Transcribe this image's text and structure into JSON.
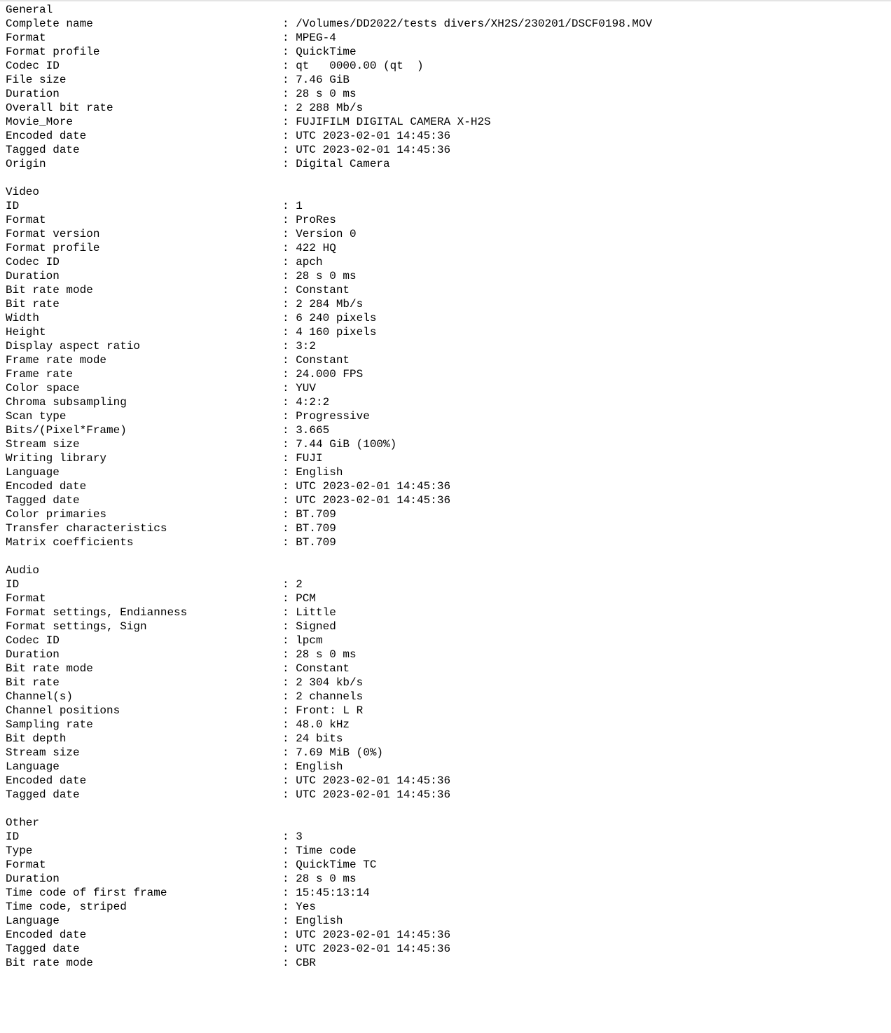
{
  "sections": [
    {
      "title": "General",
      "fields": [
        {
          "label": "Complete name",
          "value": "/Volumes/DD2022/tests divers/XH2S/230201/DSCF0198.MOV"
        },
        {
          "label": "Format",
          "value": "MPEG-4"
        },
        {
          "label": "Format profile",
          "value": "QuickTime"
        },
        {
          "label": "Codec ID",
          "value": "qt   0000.00 (qt  )"
        },
        {
          "label": "File size",
          "value": "7.46 GiB"
        },
        {
          "label": "Duration",
          "value": "28 s 0 ms"
        },
        {
          "label": "Overall bit rate",
          "value": "2 288 Mb/s"
        },
        {
          "label": "Movie_More",
          "value": "FUJIFILM DIGITAL CAMERA X-H2S"
        },
        {
          "label": "Encoded date",
          "value": "UTC 2023-02-01 14:45:36"
        },
        {
          "label": "Tagged date",
          "value": "UTC 2023-02-01 14:45:36"
        },
        {
          "label": "Origin",
          "value": "Digital Camera"
        }
      ]
    },
    {
      "title": "Video",
      "fields": [
        {
          "label": "ID",
          "value": "1"
        },
        {
          "label": "Format",
          "value": "ProRes"
        },
        {
          "label": "Format version",
          "value": "Version 0"
        },
        {
          "label": "Format profile",
          "value": "422 HQ"
        },
        {
          "label": "Codec ID",
          "value": "apch"
        },
        {
          "label": "Duration",
          "value": "28 s 0 ms"
        },
        {
          "label": "Bit rate mode",
          "value": "Constant"
        },
        {
          "label": "Bit rate",
          "value": "2 284 Mb/s"
        },
        {
          "label": "Width",
          "value": "6 240 pixels"
        },
        {
          "label": "Height",
          "value": "4 160 pixels"
        },
        {
          "label": "Display aspect ratio",
          "value": "3:2"
        },
        {
          "label": "Frame rate mode",
          "value": "Constant"
        },
        {
          "label": "Frame rate",
          "value": "24.000 FPS"
        },
        {
          "label": "Color space",
          "value": "YUV"
        },
        {
          "label": "Chroma subsampling",
          "value": "4:2:2"
        },
        {
          "label": "Scan type",
          "value": "Progressive"
        },
        {
          "label": "Bits/(Pixel*Frame)",
          "value": "3.665"
        },
        {
          "label": "Stream size",
          "value": "7.44 GiB (100%)"
        },
        {
          "label": "Writing library",
          "value": "FUJI"
        },
        {
          "label": "Language",
          "value": "English"
        },
        {
          "label": "Encoded date",
          "value": "UTC 2023-02-01 14:45:36"
        },
        {
          "label": "Tagged date",
          "value": "UTC 2023-02-01 14:45:36"
        },
        {
          "label": "Color primaries",
          "value": "BT.709"
        },
        {
          "label": "Transfer characteristics",
          "value": "BT.709"
        },
        {
          "label": "Matrix coefficients",
          "value": "BT.709"
        }
      ]
    },
    {
      "title": "Audio",
      "fields": [
        {
          "label": "ID",
          "value": "2"
        },
        {
          "label": "Format",
          "value": "PCM"
        },
        {
          "label": "Format settings, Endianness",
          "value": "Little"
        },
        {
          "label": "Format settings, Sign",
          "value": "Signed"
        },
        {
          "label": "Codec ID",
          "value": "lpcm"
        },
        {
          "label": "Duration",
          "value": "28 s 0 ms"
        },
        {
          "label": "Bit rate mode",
          "value": "Constant"
        },
        {
          "label": "Bit rate",
          "value": "2 304 kb/s"
        },
        {
          "label": "Channel(s)",
          "value": "2 channels"
        },
        {
          "label": "Channel positions",
          "value": "Front: L R"
        },
        {
          "label": "Sampling rate",
          "value": "48.0 kHz"
        },
        {
          "label": "Bit depth",
          "value": "24 bits"
        },
        {
          "label": "Stream size",
          "value": "7.69 MiB (0%)"
        },
        {
          "label": "Language",
          "value": "English"
        },
        {
          "label": "Encoded date",
          "value": "UTC 2023-02-01 14:45:36"
        },
        {
          "label": "Tagged date",
          "value": "UTC 2023-02-01 14:45:36"
        }
      ]
    },
    {
      "title": "Other",
      "fields": [
        {
          "label": "ID",
          "value": "3"
        },
        {
          "label": "Type",
          "value": "Time code"
        },
        {
          "label": "Format",
          "value": "QuickTime TC"
        },
        {
          "label": "Duration",
          "value": "28 s 0 ms"
        },
        {
          "label": "Time code of first frame",
          "value": "15:45:13:14"
        },
        {
          "label": "Time code, striped",
          "value": "Yes"
        },
        {
          "label": "Language",
          "value": "English"
        },
        {
          "label": "Encoded date",
          "value": "UTC 2023-02-01 14:45:36"
        },
        {
          "label": "Tagged date",
          "value": "UTC 2023-02-01 14:45:36"
        },
        {
          "label": "Bit rate mode",
          "value": "CBR"
        }
      ]
    }
  ]
}
